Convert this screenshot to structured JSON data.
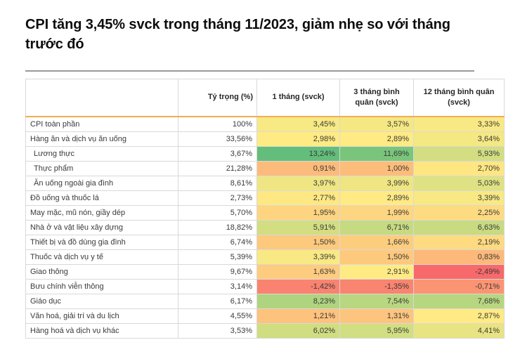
{
  "page": {
    "title": "CPI tăng 3,45% svck trong tháng 11/2023, giảm nhẹ so với tháng trước đó"
  },
  "table": {
    "columns": [
      "",
      "Tỷ trọng (%)",
      "1 tháng (svck)",
      "3 tháng bình quân (svck)",
      "12 tháng bình quân (svck)"
    ],
    "rows": [
      {
        "label": "CPI toàn phần",
        "indent": false,
        "weight": "100%",
        "cells": [
          {
            "text": "3,45%",
            "bg": "#F7E983"
          },
          {
            "text": "3,57%",
            "bg": "#F5E883"
          },
          {
            "text": "3,33%",
            "bg": "#F9E984"
          }
        ]
      },
      {
        "label": "Hàng ăn và dịch vụ ăn uống",
        "indent": false,
        "weight": "33,56%",
        "cells": [
          {
            "text": "2,98%",
            "bg": "#FEEB84"
          },
          {
            "text": "2,89%",
            "bg": "#FFEA84"
          },
          {
            "text": "3,64%",
            "bg": "#F4E883"
          }
        ]
      },
      {
        "label": "Lương thực",
        "indent": true,
        "weight": "3,67%",
        "cells": [
          {
            "text": "13,24%",
            "bg": "#63BE7B"
          },
          {
            "text": "11,69%",
            "bg": "#7AC57C"
          },
          {
            "text": "5,93%",
            "bg": "#D2DE81"
          }
        ]
      },
      {
        "label": "Thực phẩm",
        "indent": true,
        "weight": "21,28%",
        "cells": [
          {
            "text": "0,91%",
            "bg": "#FCBB7B"
          },
          {
            "text": "1,00%",
            "bg": "#FCBD7B"
          },
          {
            "text": "2,70%",
            "bg": "#FEE683"
          }
        ]
      },
      {
        "label": "Ăn uống ngoài gia đình",
        "indent": true,
        "weight": "8,61%",
        "cells": [
          {
            "text": "3,97%",
            "bg": "#EFE683"
          },
          {
            "text": "3,99%",
            "bg": "#EFE583"
          },
          {
            "text": "5,03%",
            "bg": "#DFE282"
          }
        ]
      },
      {
        "label": "Đồ uống và thuốc lá",
        "indent": false,
        "weight": "2,73%",
        "cells": [
          {
            "text": "2,77%",
            "bg": "#FEE883"
          },
          {
            "text": "2,89%",
            "bg": "#FFEA84"
          },
          {
            "text": "3,39%",
            "bg": "#F8E984"
          }
        ]
      },
      {
        "label": "May mặc, mũ nón, giầy dép",
        "indent": false,
        "weight": "5,70%",
        "cells": [
          {
            "text": "1,95%",
            "bg": "#FED480"
          },
          {
            "text": "1,99%",
            "bg": "#FED580"
          },
          {
            "text": "2,25%",
            "bg": "#FEDB81"
          }
        ]
      },
      {
        "label": "Nhà ở và vật liệu xây dựng",
        "indent": false,
        "weight": "18,82%",
        "cells": [
          {
            "text": "5,91%",
            "bg": "#D2DE81"
          },
          {
            "text": "6,71%",
            "bg": "#C6DA81"
          },
          {
            "text": "6,63%",
            "bg": "#C8DB81"
          }
        ]
      },
      {
        "label": "Thiết bị và đồ dùng gia đình",
        "indent": false,
        "weight": "6,74%",
        "cells": [
          {
            "text": "1,50%",
            "bg": "#FDC97D"
          },
          {
            "text": "1,66%",
            "bg": "#FDCD7E"
          },
          {
            "text": "2,19%",
            "bg": "#FEDA81"
          }
        ]
      },
      {
        "label": "Thuốc và dịch vụ y tế",
        "indent": false,
        "weight": "5,39%",
        "cells": [
          {
            "text": "3,39%",
            "bg": "#F8E984"
          },
          {
            "text": "1,50%",
            "bg": "#FDC97D"
          },
          {
            "text": "0,83%",
            "bg": "#FCB97A"
          }
        ]
      },
      {
        "label": "Giao thông",
        "indent": false,
        "weight": "9,67%",
        "cells": [
          {
            "text": "1,63%",
            "bg": "#FDCC7E"
          },
          {
            "text": "2,91%",
            "bg": "#FFEB84"
          },
          {
            "text": "-2,49%",
            "bg": "#F8696B"
          }
        ]
      },
      {
        "label": "Bưu chính viễn thông",
        "indent": false,
        "weight": "3,14%",
        "cells": [
          {
            "text": "-1,42%",
            "bg": "#F98370"
          },
          {
            "text": "-1,35%",
            "bg": "#F98470"
          },
          {
            "text": "-0,71%",
            "bg": "#FA9473"
          }
        ]
      },
      {
        "label": "Giáo dục",
        "indent": false,
        "weight": "6,17%",
        "cells": [
          {
            "text": "8,23%",
            "bg": "#AFD47F"
          },
          {
            "text": "7,54%",
            "bg": "#B9D780"
          },
          {
            "text": "7,68%",
            "bg": "#B7D680"
          }
        ]
      },
      {
        "label": "Văn hoá, giải trí và du lịch",
        "indent": false,
        "weight": "4,55%",
        "cells": [
          {
            "text": "1,21%",
            "bg": "#FDC27C"
          },
          {
            "text": "1,31%",
            "bg": "#FDC47D"
          },
          {
            "text": "2,87%",
            "bg": "#FFEA84"
          }
        ]
      },
      {
        "label": "Hàng hoá và dịch vụ khác",
        "indent": false,
        "weight": "3,53%",
        "cells": [
          {
            "text": "6,02%",
            "bg": "#D0DD81"
          },
          {
            "text": "5,95%",
            "bg": "#D1DE81"
          },
          {
            "text": "4,41%",
            "bg": "#E8E483"
          }
        ]
      }
    ]
  },
  "colors": {
    "header_underline": "#F2AC55",
    "grid_border": "#D9D9D9",
    "title_divider": "#999999",
    "scale_min_color": "#F8696B",
    "scale_mid_color": "#FFEB84",
    "scale_max_color": "#63BE7B"
  },
  "chart_data": {
    "type": "heatmap",
    "title": "CPI tăng 3,45% svck trong tháng 11/2023, giảm nhẹ so với tháng trước đó",
    "columns": [
      "Tỷ trọng (%)",
      "1 tháng (svck)",
      "3 tháng bình quân (svck)",
      "12 tháng bình quân (svck)"
    ],
    "unit": "%",
    "rows": [
      {
        "label": "CPI toàn phần",
        "values": [
          100,
          3.45,
          3.57,
          3.33
        ]
      },
      {
        "label": "Hàng ăn và dịch vụ ăn uống",
        "values": [
          33.56,
          2.98,
          2.89,
          3.64
        ]
      },
      {
        "label": "Lương thực",
        "values": [
          3.67,
          13.24,
          11.69,
          5.93
        ]
      },
      {
        "label": "Thực phẩm",
        "values": [
          21.28,
          0.91,
          1.0,
          2.7
        ]
      },
      {
        "label": "Ăn uống ngoài gia đình",
        "values": [
          8.61,
          3.97,
          3.99,
          5.03
        ]
      },
      {
        "label": "Đồ uống và thuốc lá",
        "values": [
          2.73,
          2.77,
          2.89,
          3.39
        ]
      },
      {
        "label": "May mặc, mũ nón, giầy dép",
        "values": [
          5.7,
          1.95,
          1.99,
          2.25
        ]
      },
      {
        "label": "Nhà ở và vật liệu xây dựng",
        "values": [
          18.82,
          5.91,
          6.71,
          6.63
        ]
      },
      {
        "label": "Thiết bị và đồ dùng gia đình",
        "values": [
          6.74,
          1.5,
          1.66,
          2.19
        ]
      },
      {
        "label": "Thuốc và dịch vụ y tế",
        "values": [
          5.39,
          3.39,
          1.5,
          0.83
        ]
      },
      {
        "label": "Giao thông",
        "values": [
          9.67,
          1.63,
          2.91,
          -2.49
        ]
      },
      {
        "label": "Bưu chính viễn thông",
        "values": [
          3.14,
          -1.42,
          -1.35,
          -0.71
        ]
      },
      {
        "label": "Giáo dục",
        "values": [
          6.17,
          8.23,
          7.54,
          7.68
        ]
      },
      {
        "label": "Văn hoá, giải trí và du lịch",
        "values": [
          4.55,
          1.21,
          1.31,
          2.87
        ]
      },
      {
        "label": "Hàng hoá và dịch vụ khác",
        "values": [
          3.53,
          6.02,
          5.95,
          4.41
        ]
      }
    ],
    "color_scale": {
      "min_value": -2.49,
      "mid_value": 2.91,
      "max_value": 13.24,
      "min_color": "#F8696B",
      "mid_color": "#FFEB84",
      "max_color": "#63BE7B"
    },
    "legend_position": "none",
    "grid": true
  }
}
